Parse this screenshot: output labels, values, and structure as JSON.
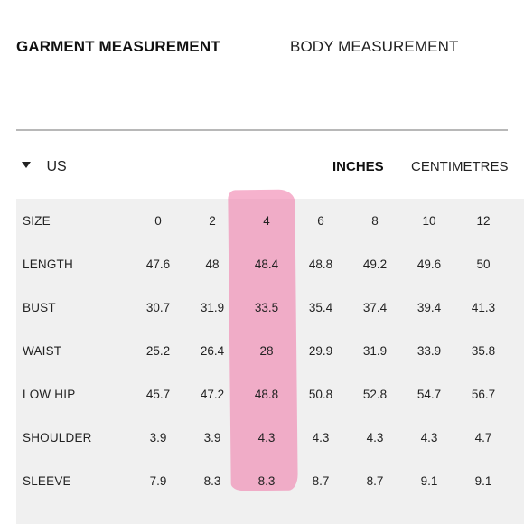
{
  "tabs": {
    "garment": "GARMENT MEASUREMENT",
    "body": "BODY MEASUREMENT"
  },
  "region": {
    "selected": "US"
  },
  "units": {
    "inches": "INCHES",
    "centimetres": "CENTIMETRES"
  },
  "highlight": {
    "color": "#f082af",
    "column": "4"
  },
  "table": {
    "header_label": "SIZE",
    "sizes": [
      "0",
      "2",
      "4",
      "6",
      "8",
      "10",
      "12"
    ],
    "rows": [
      {
        "label": "LENGTH",
        "values": [
          "47.6",
          "48",
          "48.4",
          "48.8",
          "49.2",
          "49.6",
          "50"
        ]
      },
      {
        "label": "BUST",
        "values": [
          "30.7",
          "31.9",
          "33.5",
          "35.4",
          "37.4",
          "39.4",
          "41.3"
        ]
      },
      {
        "label": "WAIST",
        "values": [
          "25.2",
          "26.4",
          "28",
          "29.9",
          "31.9",
          "33.9",
          "35.8"
        ]
      },
      {
        "label": "LOW HIP",
        "values": [
          "45.7",
          "47.2",
          "48.8",
          "50.8",
          "52.8",
          "54.7",
          "56.7"
        ]
      },
      {
        "label": "SHOULDER",
        "values": [
          "3.9",
          "3.9",
          "4.3",
          "4.3",
          "4.3",
          "4.3",
          "4.7"
        ]
      },
      {
        "label": "SLEEVE",
        "values": [
          "7.9",
          "8.3",
          "8.3",
          "8.7",
          "8.7",
          "9.1",
          "9.1"
        ]
      }
    ]
  }
}
